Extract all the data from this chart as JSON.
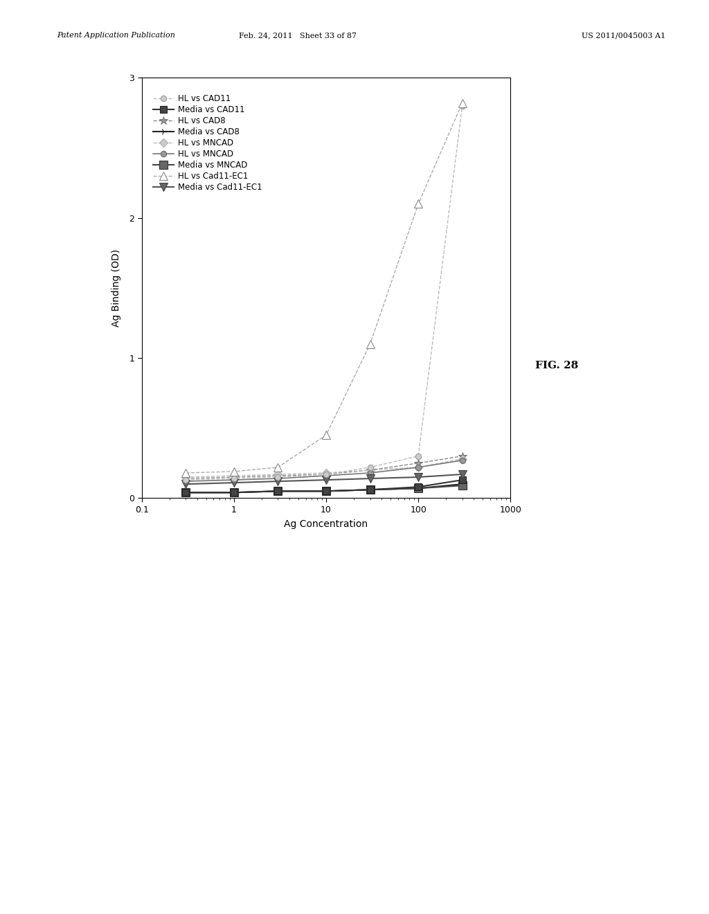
{
  "title": "FIG. 28",
  "xlabel": "Ag Concentration",
  "ylabel": "Ag Binding (OD)",
  "xlim": [
    0.1,
    1000
  ],
  "ylim": [
    0,
    3.0
  ],
  "yticks": [
    0,
    1,
    2,
    3
  ],
  "x_values": [
    0.3,
    1,
    3,
    10,
    30,
    100,
    300
  ],
  "series": [
    {
      "label": "HL vs CAD11",
      "y": [
        0.13,
        0.14,
        0.15,
        0.17,
        0.22,
        0.3,
        2.8
      ],
      "color": "#bbbbbb",
      "marker": "o",
      "marker_size": 6,
      "linestyle": "--",
      "linewidth": 1.0,
      "marker_facecolor": "#cccccc",
      "marker_edgecolor": "#999999",
      "zorder": 5
    },
    {
      "label": "Media vs CAD11",
      "y": [
        0.04,
        0.04,
        0.05,
        0.05,
        0.06,
        0.08,
        0.13
      ],
      "color": "#333333",
      "marker": "s",
      "marker_size": 7,
      "linestyle": "-",
      "linewidth": 1.5,
      "marker_facecolor": "#444444",
      "marker_edgecolor": "#222222",
      "zorder": 4
    },
    {
      "label": "HL vs CAD8",
      "y": [
        0.14,
        0.15,
        0.16,
        0.17,
        0.2,
        0.25,
        0.3
      ],
      "color": "#888888",
      "marker": "*",
      "marker_size": 9,
      "linestyle": "--",
      "linewidth": 1.0,
      "marker_facecolor": "#999999",
      "marker_edgecolor": "#777777",
      "zorder": 4
    },
    {
      "label": "Media vs CAD8",
      "y": [
        0.04,
        0.04,
        0.05,
        0.05,
        0.06,
        0.07,
        0.1
      ],
      "color": "#222222",
      "marker": "4",
      "marker_size": 7,
      "linestyle": "-",
      "linewidth": 1.5,
      "marker_facecolor": "#222222",
      "marker_edgecolor": "#111111",
      "zorder": 3
    },
    {
      "label": "HL vs MNCAD",
      "y": [
        0.15,
        0.16,
        0.17,
        0.18,
        0.2,
        0.22,
        0.28
      ],
      "color": "#bbbbbb",
      "marker": "D",
      "marker_size": 6,
      "linestyle": "--",
      "linewidth": 1.0,
      "marker_facecolor": "#cccccc",
      "marker_edgecolor": "#aaaaaa",
      "zorder": 4
    },
    {
      "label": "HL vs MNCAD",
      "y": [
        0.12,
        0.13,
        0.14,
        0.16,
        0.18,
        0.22,
        0.27
      ],
      "color": "#777777",
      "marker": "o",
      "marker_size": 6,
      "linestyle": "-",
      "linewidth": 1.2,
      "marker_facecolor": "#999999",
      "marker_edgecolor": "#666666",
      "zorder": 4
    },
    {
      "label": "Media vs MNCAD",
      "y": [
        0.04,
        0.04,
        0.05,
        0.05,
        0.06,
        0.07,
        0.09
      ],
      "color": "#444444",
      "marker": "s",
      "marker_size": 8,
      "linestyle": "-",
      "linewidth": 1.5,
      "marker_facecolor": "#666666",
      "marker_edgecolor": "#333333",
      "zorder": 3
    },
    {
      "label": "HL vs Cad11-EC1",
      "y": [
        0.18,
        0.19,
        0.22,
        0.45,
        1.1,
        2.1,
        2.82
      ],
      "color": "#aaaaaa",
      "marker": "^",
      "marker_size": 8,
      "linestyle": "--",
      "linewidth": 1.0,
      "marker_facecolor": "#ffffff",
      "marker_edgecolor": "#888888",
      "zorder": 6
    },
    {
      "label": "Media vs Cad11-EC1",
      "y": [
        0.1,
        0.11,
        0.12,
        0.13,
        0.14,
        0.15,
        0.17
      ],
      "color": "#555555",
      "marker": "v",
      "marker_size": 8,
      "linestyle": "-",
      "linewidth": 1.5,
      "marker_facecolor": "#666666",
      "marker_edgecolor": "#444444",
      "zorder": 4
    }
  ],
  "header_left": "Patent Application Publication",
  "header_mid": "Feb. 24, 2011   Sheet 33 of 87",
  "header_right": "US 2011/0045003 A1",
  "background_color": "#ffffff",
  "legend_fontsize": 8.5,
  "axis_fontsize": 10,
  "tick_fontsize": 9
}
